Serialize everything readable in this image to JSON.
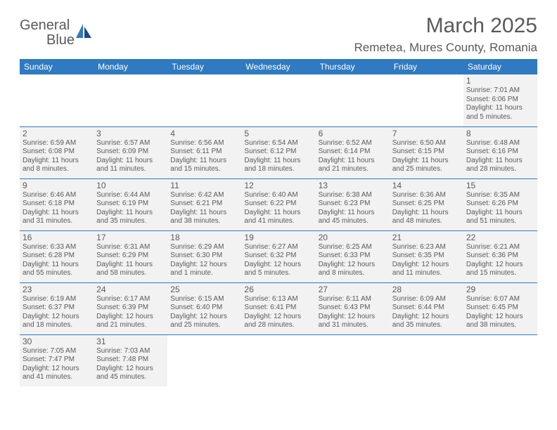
{
  "logo": {
    "main": "General",
    "accent": "Blue"
  },
  "title": "March 2025",
  "location": "Remetea, Mures County, Romania",
  "colors": {
    "header_bg": "#2f7ac0",
    "header_text": "#ffffff",
    "cell_fill": "#f2f2f2",
    "border": "#2f7ac0",
    "text": "#5a5a5a",
    "page_bg": "#ffffff"
  },
  "weekdays": [
    "Sunday",
    "Monday",
    "Tuesday",
    "Wednesday",
    "Thursday",
    "Friday",
    "Saturday"
  ],
  "weeks": [
    [
      null,
      null,
      null,
      null,
      null,
      null,
      {
        "n": "1",
        "sr": "Sunrise: 7:01 AM",
        "ss": "Sunset: 6:06 PM",
        "dl": "Daylight: 11 hours and 5 minutes."
      }
    ],
    [
      {
        "n": "2",
        "sr": "Sunrise: 6:59 AM",
        "ss": "Sunset: 6:08 PM",
        "dl": "Daylight: 11 hours and 8 minutes."
      },
      {
        "n": "3",
        "sr": "Sunrise: 6:57 AM",
        "ss": "Sunset: 6:09 PM",
        "dl": "Daylight: 11 hours and 11 minutes."
      },
      {
        "n": "4",
        "sr": "Sunrise: 6:56 AM",
        "ss": "Sunset: 6:11 PM",
        "dl": "Daylight: 11 hours and 15 minutes."
      },
      {
        "n": "5",
        "sr": "Sunrise: 6:54 AM",
        "ss": "Sunset: 6:12 PM",
        "dl": "Daylight: 11 hours and 18 minutes."
      },
      {
        "n": "6",
        "sr": "Sunrise: 6:52 AM",
        "ss": "Sunset: 6:14 PM",
        "dl": "Daylight: 11 hours and 21 minutes."
      },
      {
        "n": "7",
        "sr": "Sunrise: 6:50 AM",
        "ss": "Sunset: 6:15 PM",
        "dl": "Daylight: 11 hours and 25 minutes."
      },
      {
        "n": "8",
        "sr": "Sunrise: 6:48 AM",
        "ss": "Sunset: 6:16 PM",
        "dl": "Daylight: 11 hours and 28 minutes."
      }
    ],
    [
      {
        "n": "9",
        "sr": "Sunrise: 6:46 AM",
        "ss": "Sunset: 6:18 PM",
        "dl": "Daylight: 11 hours and 31 minutes."
      },
      {
        "n": "10",
        "sr": "Sunrise: 6:44 AM",
        "ss": "Sunset: 6:19 PM",
        "dl": "Daylight: 11 hours and 35 minutes."
      },
      {
        "n": "11",
        "sr": "Sunrise: 6:42 AM",
        "ss": "Sunset: 6:21 PM",
        "dl": "Daylight: 11 hours and 38 minutes."
      },
      {
        "n": "12",
        "sr": "Sunrise: 6:40 AM",
        "ss": "Sunset: 6:22 PM",
        "dl": "Daylight: 11 hours and 41 minutes."
      },
      {
        "n": "13",
        "sr": "Sunrise: 6:38 AM",
        "ss": "Sunset: 6:23 PM",
        "dl": "Daylight: 11 hours and 45 minutes."
      },
      {
        "n": "14",
        "sr": "Sunrise: 6:36 AM",
        "ss": "Sunset: 6:25 PM",
        "dl": "Daylight: 11 hours and 48 minutes."
      },
      {
        "n": "15",
        "sr": "Sunrise: 6:35 AM",
        "ss": "Sunset: 6:26 PM",
        "dl": "Daylight: 11 hours and 51 minutes."
      }
    ],
    [
      {
        "n": "16",
        "sr": "Sunrise: 6:33 AM",
        "ss": "Sunset: 6:28 PM",
        "dl": "Daylight: 11 hours and 55 minutes."
      },
      {
        "n": "17",
        "sr": "Sunrise: 6:31 AM",
        "ss": "Sunset: 6:29 PM",
        "dl": "Daylight: 11 hours and 58 minutes."
      },
      {
        "n": "18",
        "sr": "Sunrise: 6:29 AM",
        "ss": "Sunset: 6:30 PM",
        "dl": "Daylight: 12 hours and 1 minute."
      },
      {
        "n": "19",
        "sr": "Sunrise: 6:27 AM",
        "ss": "Sunset: 6:32 PM",
        "dl": "Daylight: 12 hours and 5 minutes."
      },
      {
        "n": "20",
        "sr": "Sunrise: 6:25 AM",
        "ss": "Sunset: 6:33 PM",
        "dl": "Daylight: 12 hours and 8 minutes."
      },
      {
        "n": "21",
        "sr": "Sunrise: 6:23 AM",
        "ss": "Sunset: 6:35 PM",
        "dl": "Daylight: 12 hours and 11 minutes."
      },
      {
        "n": "22",
        "sr": "Sunrise: 6:21 AM",
        "ss": "Sunset: 6:36 PM",
        "dl": "Daylight: 12 hours and 15 minutes."
      }
    ],
    [
      {
        "n": "23",
        "sr": "Sunrise: 6:19 AM",
        "ss": "Sunset: 6:37 PM",
        "dl": "Daylight: 12 hours and 18 minutes."
      },
      {
        "n": "24",
        "sr": "Sunrise: 6:17 AM",
        "ss": "Sunset: 6:39 PM",
        "dl": "Daylight: 12 hours and 21 minutes."
      },
      {
        "n": "25",
        "sr": "Sunrise: 6:15 AM",
        "ss": "Sunset: 6:40 PM",
        "dl": "Daylight: 12 hours and 25 minutes."
      },
      {
        "n": "26",
        "sr": "Sunrise: 6:13 AM",
        "ss": "Sunset: 6:41 PM",
        "dl": "Daylight: 12 hours and 28 minutes."
      },
      {
        "n": "27",
        "sr": "Sunrise: 6:11 AM",
        "ss": "Sunset: 6:43 PM",
        "dl": "Daylight: 12 hours and 31 minutes."
      },
      {
        "n": "28",
        "sr": "Sunrise: 6:09 AM",
        "ss": "Sunset: 6:44 PM",
        "dl": "Daylight: 12 hours and 35 minutes."
      },
      {
        "n": "29",
        "sr": "Sunrise: 6:07 AM",
        "ss": "Sunset: 6:45 PM",
        "dl": "Daylight: 12 hours and 38 minutes."
      }
    ],
    [
      {
        "n": "30",
        "sr": "Sunrise: 7:05 AM",
        "ss": "Sunset: 7:47 PM",
        "dl": "Daylight: 12 hours and 41 minutes."
      },
      {
        "n": "31",
        "sr": "Sunrise: 7:03 AM",
        "ss": "Sunset: 7:48 PM",
        "dl": "Daylight: 12 hours and 45 minutes."
      },
      null,
      null,
      null,
      null,
      null
    ]
  ]
}
